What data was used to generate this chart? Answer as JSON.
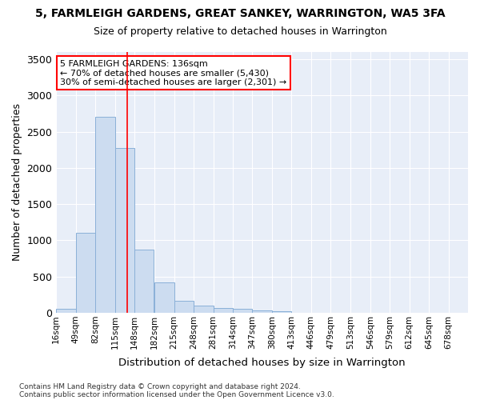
{
  "title": "5, FARMLEIGH GARDENS, GREAT SANKEY, WARRINGTON, WA5 3FA",
  "subtitle": "Size of property relative to detached houses in Warrington",
  "xlabel": "Distribution of detached houses by size in Warrington",
  "ylabel": "Number of detached properties",
  "footnote1": "Contains HM Land Registry data © Crown copyright and database right 2024.",
  "footnote2": "Contains public sector information licensed under the Open Government Licence v3.0.",
  "annotation_title": "5 FARMLEIGH GARDENS: 136sqm",
  "annotation_line1": "← 70% of detached houses are smaller (5,430)",
  "annotation_line2": "30% of semi-detached houses are larger (2,301) →",
  "property_size": 136,
  "bar_color": "#ccdcf0",
  "bar_edge_color": "#8ab0d8",
  "line_color": "red",
  "background_color": "#e8eef8",
  "grid_color": "#ffffff",
  "bins": [
    16,
    49,
    82,
    115,
    148,
    182,
    215,
    248,
    281,
    314,
    347,
    380,
    413,
    446,
    479,
    513,
    546,
    579,
    612,
    645,
    678
  ],
  "bin_labels": [
    "16sqm",
    "49sqm",
    "82sqm",
    "115sqm",
    "148sqm",
    "182sqm",
    "215sqm",
    "248sqm",
    "281sqm",
    "314sqm",
    "347sqm",
    "380sqm",
    "413sqm",
    "446sqm",
    "479sqm",
    "513sqm",
    "546sqm",
    "579sqm",
    "612sqm",
    "645sqm",
    "678sqm"
  ],
  "bar_heights": [
    50,
    1100,
    2700,
    2280,
    870,
    415,
    165,
    100,
    65,
    50,
    35,
    20,
    5,
    5,
    0,
    0,
    0,
    0,
    0,
    0
  ],
  "ylim": [
    0,
    3600
  ],
  "yticks": [
    0,
    500,
    1000,
    1500,
    2000,
    2500,
    3000,
    3500
  ]
}
